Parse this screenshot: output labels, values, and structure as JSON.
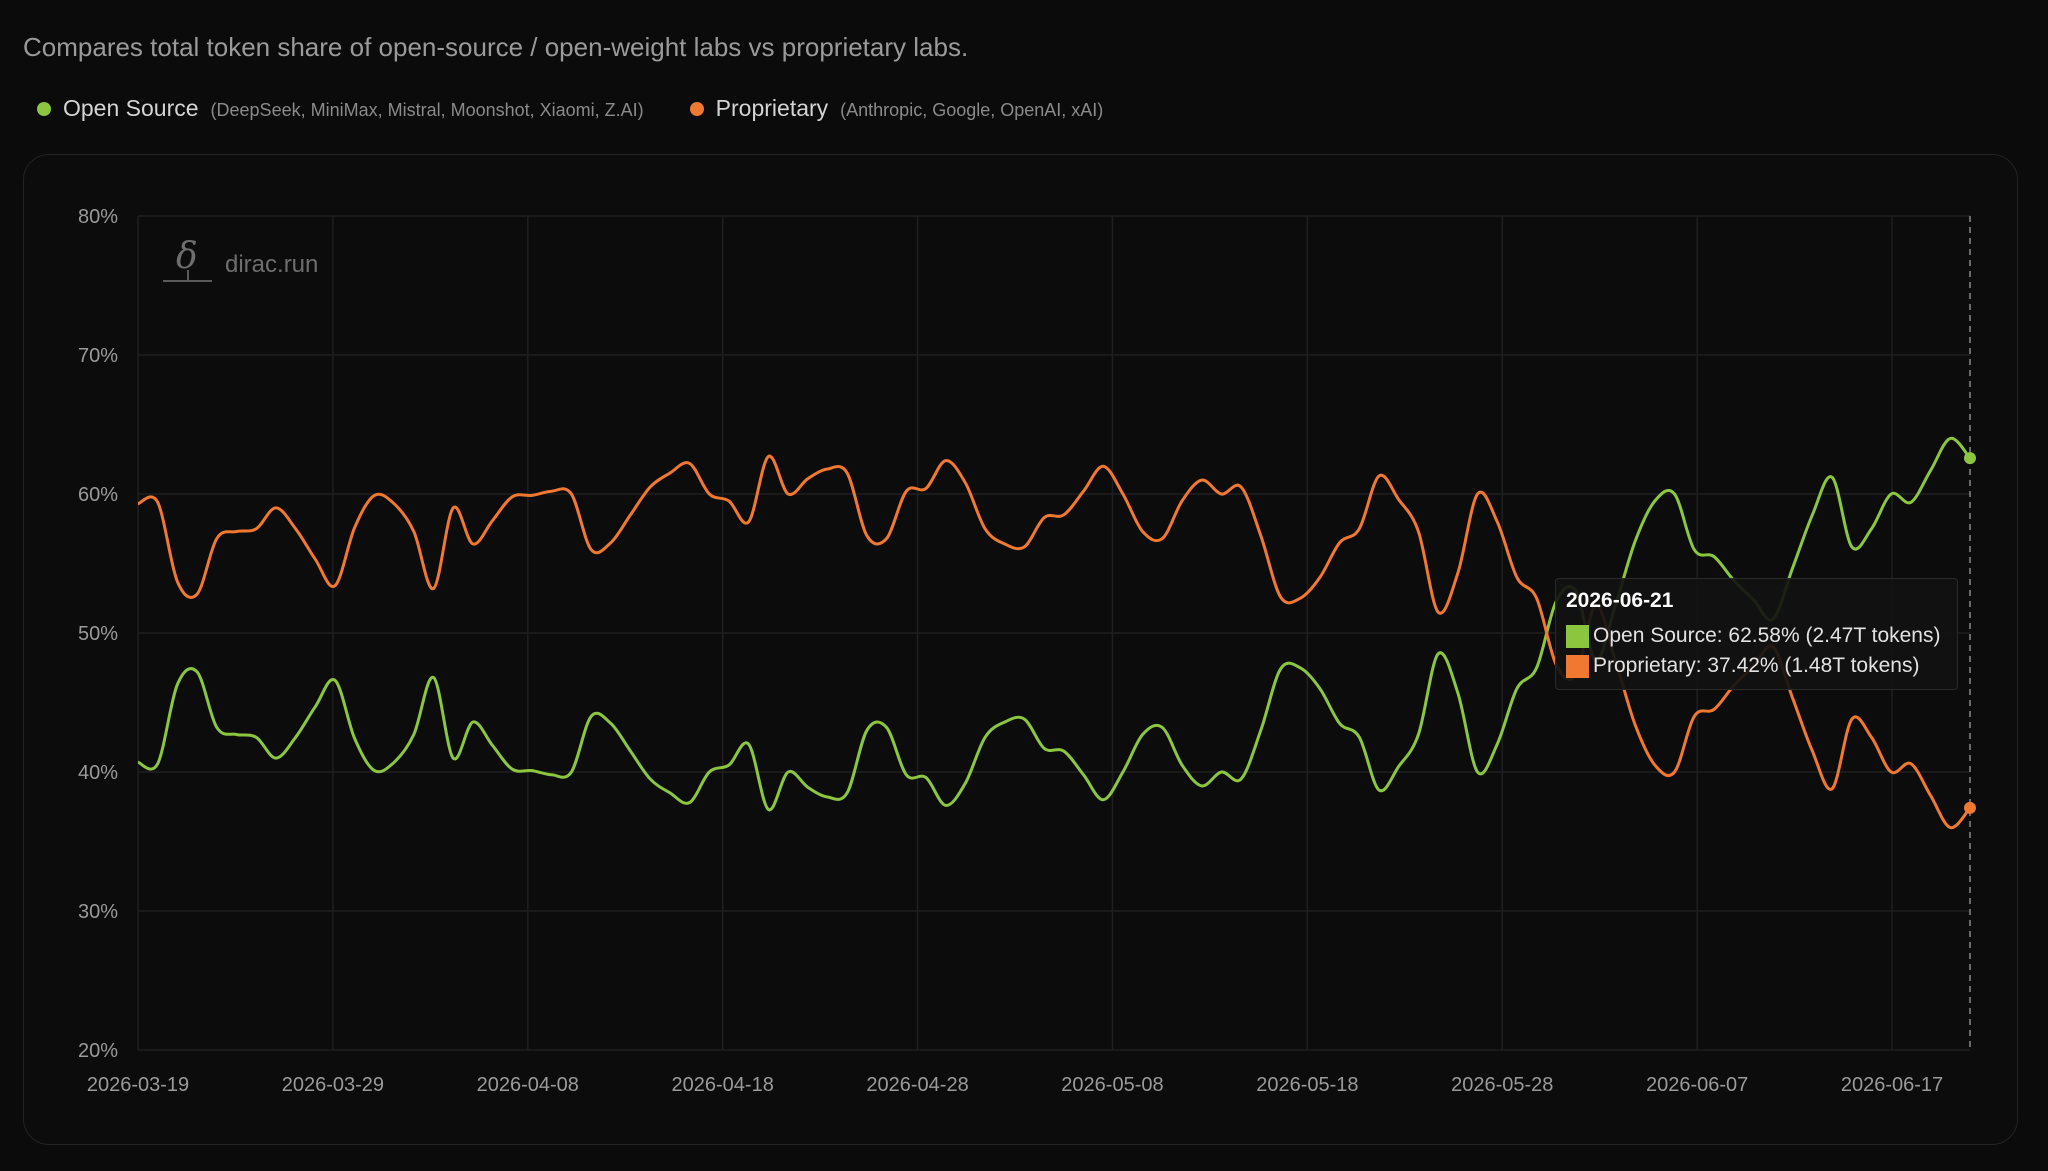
{
  "subtitle": "Compares total token share of open-source / open-weight labs vs proprietary labs.",
  "legend": [
    {
      "name": "Open Source",
      "members": "(DeepSeek, MiniMax, Mistral, Moonshot, Xiaomi, Z.AI)",
      "color": "#8cc63f"
    },
    {
      "name": "Proprietary",
      "members": "(Anthropic, Google, OpenAI, xAI)",
      "color": "#f07830"
    }
  ],
  "watermark": {
    "glyph": "δ",
    "text": "dirac.run"
  },
  "tooltip": {
    "date": "2026-06-21",
    "rows": [
      {
        "text": "Open Source: 62.58% (2.47T tokens)",
        "color": "#8cc63f"
      },
      {
        "text": "Proprietary: 37.42% (1.48T tokens)",
        "color": "#f07830"
      }
    ]
  },
  "chart_data": {
    "type": "line",
    "x_start": "2026-03-19",
    "x_end": "2026-06-21",
    "ylim": [
      20,
      80
    ],
    "yticks": [
      "20%",
      "30%",
      "40%",
      "50%",
      "60%",
      "70%",
      "80%"
    ],
    "xticks": [
      "2026-03-19",
      "2026-03-29",
      "2026-04-08",
      "2026-04-18",
      "2026-04-28",
      "2026-05-08",
      "2026-05-18",
      "2026-05-28",
      "2026-06-07",
      "2026-06-17"
    ],
    "grid": true,
    "series": [
      {
        "name": "Open Source",
        "color": "#8cc63f",
        "values": [
          40.7,
          40.6,
          46.3,
          47.2,
          43.2,
          42.7,
          42.5,
          41.0,
          42.5,
          44.7,
          46.6,
          42.4,
          40.1,
          40.7,
          42.7,
          46.8,
          41.0,
          43.6,
          41.9,
          40.2,
          40.1,
          39.8,
          40.0,
          44.0,
          43.5,
          41.5,
          39.5,
          38.5,
          37.8,
          40.0,
          40.5,
          42.0,
          37.3,
          40.0,
          38.9,
          38.2,
          38.5,
          43.0,
          43.2,
          39.8,
          39.6,
          37.6,
          39.2,
          42.5,
          43.6,
          43.8,
          41.7,
          41.5,
          39.8,
          38.0,
          40.0,
          42.7,
          43.2,
          40.5,
          39.0,
          40.0,
          39.5,
          43.0,
          47.4,
          47.5,
          46.0,
          43.5,
          42.5,
          38.7,
          40.4,
          42.7,
          48.5,
          45.7,
          40.0,
          42.0,
          46.0,
          47.5,
          52.3,
          53.0,
          48.0,
          52.0,
          56.6,
          59.5,
          60.0,
          56.0,
          55.5,
          53.8,
          52.4,
          51.0,
          54.7,
          58.5,
          61.2,
          56.2,
          57.5,
          60.0,
          59.4,
          61.7,
          64.0,
          62.58
        ]
      },
      {
        "name": "Proprietary",
        "color": "#f07830",
        "values": [
          59.3,
          59.4,
          53.7,
          52.8,
          56.8,
          57.3,
          57.5,
          59.0,
          57.5,
          55.3,
          53.4,
          57.6,
          59.9,
          59.3,
          57.3,
          53.2,
          59.0,
          56.4,
          58.1,
          59.8,
          59.9,
          60.2,
          60.0,
          56.0,
          56.5,
          58.5,
          60.5,
          61.5,
          62.2,
          60.0,
          59.5,
          58.0,
          62.7,
          60.0,
          61.1,
          61.8,
          61.5,
          57.0,
          56.8,
          60.2,
          60.4,
          62.4,
          60.8,
          57.5,
          56.4,
          56.2,
          58.3,
          58.5,
          60.2,
          62.0,
          60.0,
          57.3,
          56.8,
          59.5,
          61.0,
          60.0,
          60.5,
          57.0,
          52.6,
          52.5,
          54.0,
          56.5,
          57.5,
          61.3,
          59.6,
          57.3,
          51.5,
          54.3,
          60.0,
          58.0,
          54.0,
          52.5,
          47.7,
          47.0,
          52.0,
          48.0,
          43.4,
          40.5,
          40.0,
          44.0,
          44.5,
          46.2,
          47.6,
          49.0,
          45.3,
          41.5,
          38.8,
          43.8,
          42.5,
          40.0,
          40.6,
          38.3,
          36.0,
          37.42
        ]
      }
    ]
  }
}
